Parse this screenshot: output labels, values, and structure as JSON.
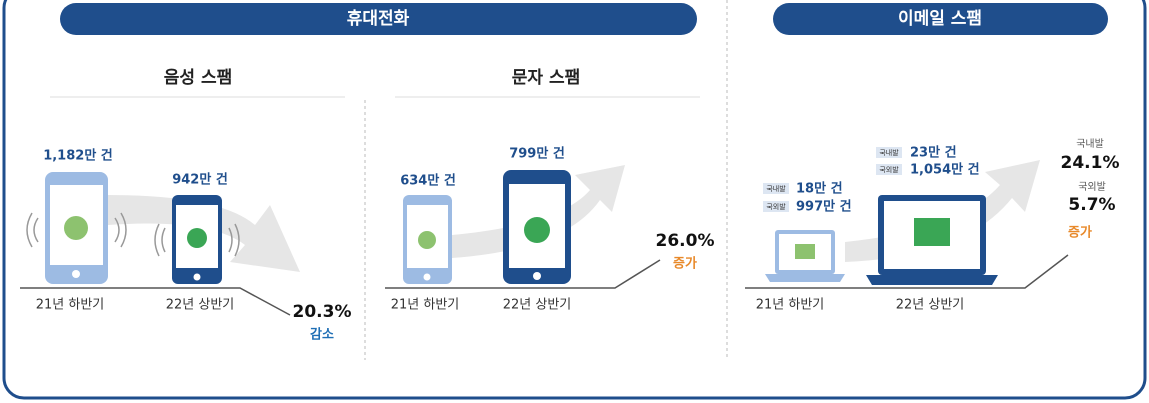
{
  "phone": {
    "title": "휴대전화",
    "voice": {
      "title": "음성 스팸",
      "before": {
        "count": "1,182만 건",
        "period": "21년 하반기"
      },
      "after": {
        "count": "942만 건",
        "period": "22년 상반기"
      },
      "change": "20.3%",
      "direction": "감소"
    },
    "sms": {
      "title": "문자 스팸",
      "before": {
        "count": "634만 건",
        "period": "21년 하반기"
      },
      "after": {
        "count": "799만 건",
        "period": "22년 상반기"
      },
      "change": "26.0%",
      "direction": "증가"
    }
  },
  "email": {
    "title": "이메일 스팸",
    "before": {
      "domestic_label": "국내발",
      "domestic": "18만 건",
      "foreign_label": "국외발",
      "foreign": "997만 건",
      "period": "21년 하반기"
    },
    "after": {
      "domestic_label": "국내발",
      "domestic": "23만 건",
      "foreign_label": "국외발",
      "foreign": "1,054만 건",
      "period": "22년 상반기"
    },
    "change": {
      "domestic_label": "국내발",
      "domestic": "24.1%",
      "foreign_label": "국외발",
      "foreign": "5.7%",
      "direction": "증가"
    }
  }
}
